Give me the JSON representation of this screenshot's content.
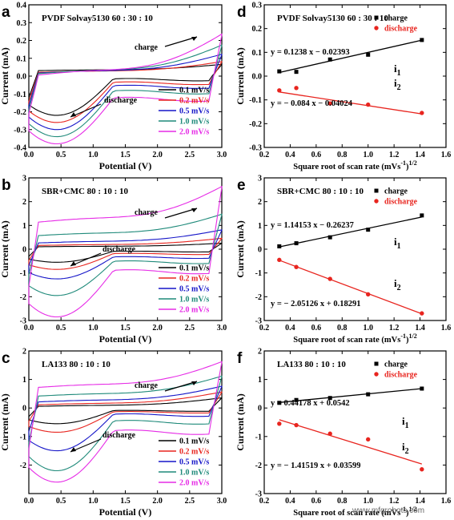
{
  "watermark": "www.mfgrobots.com",
  "colors": {
    "s1": "#000000",
    "s2": "#e8251f",
    "s3": "#1515c8",
    "s4": "#1f8a7a",
    "s5": "#e62be6"
  },
  "cv_legend": [
    "0.1 mV/s",
    "0.2 mV/s",
    "0.5 mV/s",
    "1.0 mV/s",
    "2.0 mV/s"
  ],
  "fit_legend": [
    "charge",
    "discharge"
  ],
  "chart_data": [
    {
      "panel": "a",
      "type": "line",
      "title": "PVDF Solvay5130  60 : 30 : 10",
      "xlabel": "Potential (V)",
      "ylabel": "Current (mA)",
      "xlim": [
        0,
        3
      ],
      "ylim": [
        -0.4,
        0.4
      ],
      "xticks": [
        "0.0",
        "0.5",
        "1.0",
        "1.5",
        "2.0",
        "2.5",
        "3.0"
      ],
      "yticks": [
        "-0.4",
        "-0.3",
        "-0.2",
        "-0.1",
        "0.0",
        "0.1",
        "0.2",
        "0.3",
        "0.4"
      ],
      "annotations": [
        "charge",
        "discharge"
      ],
      "charge_peak": [
        0.065,
        0.08,
        0.12,
        0.17,
        0.23
      ],
      "discharge_peak": [
        -0.22,
        -0.26,
        -0.3,
        -0.34,
        -0.38
      ],
      "baseline_ox": [
        0.03,
        0.02,
        0.015,
        0.01,
        0.0
      ],
      "baseline_red": [
        -0.02,
        -0.04,
        -0.06,
        -0.09,
        -0.13
      ]
    },
    {
      "panel": "b",
      "type": "line",
      "title": "SBR+CMC  80 : 10 : 10",
      "xlabel": "Potential (V)",
      "ylabel": "Current (mA)",
      "xlim": [
        0,
        3
      ],
      "ylim": [
        -3,
        3
      ],
      "xticks": [
        "0.0",
        "0.5",
        "1.0",
        "1.5",
        "2.0",
        "2.5",
        "3.0"
      ],
      "yticks": [
        "-3",
        "-2",
        "-1",
        "0",
        "1",
        "2",
        "3"
      ],
      "annotations": [
        "charge",
        "discharge"
      ],
      "charge_peak": [
        0.25,
        0.45,
        0.8,
        1.45,
        2.6
      ],
      "discharge_peak": [
        -0.55,
        -0.85,
        -1.25,
        -1.95,
        -2.85
      ],
      "baseline_ox": [
        0.1,
        0.15,
        0.25,
        0.55,
        1.1
      ],
      "baseline_red": [
        -0.1,
        -0.2,
        -0.35,
        -0.55,
        -0.95
      ]
    },
    {
      "panel": "c",
      "type": "line",
      "title": "LA133  80 : 10 : 10",
      "xlabel": "Potential (V)",
      "ylabel": "Current (mA)",
      "xlim": [
        0,
        3
      ],
      "ylim": [
        -3,
        2
      ],
      "xticks": [
        "0.0",
        "0.5",
        "1.0",
        "1.5",
        "2.0",
        "2.5",
        "3.0"
      ],
      "yticks": [
        "-2",
        "-1",
        "0",
        "1",
        "2"
      ],
      "annotations": [
        "charge",
        "discharge"
      ],
      "charge_peak": [
        0.35,
        0.55,
        0.75,
        1.1,
        1.6
      ],
      "discharge_peak": [
        -0.55,
        -0.85,
        -1.5,
        -2.2,
        -2.6
      ],
      "baseline_ox": [
        0.05,
        0.1,
        0.2,
        0.4,
        0.7
      ],
      "baseline_red": [
        -0.1,
        -0.15,
        -0.25,
        -0.5,
        -0.85
      ]
    },
    {
      "panel": "d",
      "type": "scatter",
      "title": "PVDF Solvay5130  60 : 30 : 10",
      "xlabel": "Square root of scan rate (mVs",
      "xlabel_sup": "-1",
      "xlabel_tail": ")",
      "xlabel_sup2": "1/2",
      "ylabel": "Current (mA)",
      "xlim": [
        0.2,
        1.6
      ],
      "ylim": [
        -0.3,
        0.3
      ],
      "xticks": [
        "0.2",
        "0.4",
        "0.6",
        "0.8",
        "1.0",
        "1.2",
        "1.4",
        "1.6"
      ],
      "yticks": [
        "-0.3",
        "-0.2",
        "-0.1",
        "0.0",
        "0.1",
        "0.2",
        "0.3"
      ],
      "x": [
        0.316,
        0.447,
        0.707,
        1.0,
        1.414
      ],
      "series": [
        {
          "name": "charge",
          "values": [
            0.02,
            0.018,
            0.07,
            0.09,
            0.152
          ],
          "fit": [
            0.1238,
            -0.02393
          ],
          "eq": "y = 0.1238 x − 0.02393",
          "label": "i",
          "sub": "1"
        },
        {
          "name": "discharge",
          "values": [
            -0.06,
            -0.05,
            -0.115,
            -0.12,
            -0.155
          ],
          "fit": [
            -0.084,
            -0.04024
          ],
          "eq": "y = − 0.084 x − 0.04024",
          "label": "i",
          "sub": "2"
        }
      ]
    },
    {
      "panel": "e",
      "type": "scatter",
      "title": "SBR+CMC  80 : 10 : 10",
      "xlabel": "Square root of scan rate (mVs",
      "xlabel_sup": "-1",
      "xlabel_tail": ")",
      "xlabel_sup2": "1/2",
      "ylabel": "Current (mA)",
      "xlim": [
        0.2,
        1.6
      ],
      "ylim": [
        -3,
        3
      ],
      "xticks": [
        "0.2",
        "0.4",
        "0.6",
        "0.8",
        "1.0",
        "1.2",
        "1.4",
        "1.6"
      ],
      "yticks": [
        "-3",
        "-2",
        "-1",
        "0",
        "1",
        "2",
        "3"
      ],
      "x": [
        0.316,
        0.447,
        0.707,
        1.0,
        1.414
      ],
      "series": [
        {
          "name": "charge",
          "values": [
            0.12,
            0.25,
            0.5,
            0.82,
            1.42
          ],
          "fit": [
            1.14153,
            -0.26237
          ],
          "eq": "y = 1.14153 x − 0.26237",
          "label": "i",
          "sub": "1"
        },
        {
          "name": "discharge",
          "values": [
            -0.45,
            -0.75,
            -1.25,
            -1.9,
            -2.7
          ],
          "fit": [
            -2.05126,
            0.18291
          ],
          "eq": "y = − 2.05126 x + 0.18291",
          "label": "i",
          "sub": "2"
        }
      ]
    },
    {
      "panel": "f",
      "type": "scatter",
      "title": "LA133  80 : 10 : 10",
      "xlabel": "Square root of scan rate (mVs",
      "xlabel_sup": "-1",
      "xlabel_tail": ")",
      "xlabel_sup2": "1/2",
      "ylabel": "Current (mA)",
      "xlim": [
        0.2,
        1.6
      ],
      "ylim": [
        -3,
        2
      ],
      "xticks": [
        "0.2",
        "0.4",
        "0.6",
        "0.8",
        "1.0",
        "1.2",
        "1.4",
        "1.6"
      ],
      "yticks": [
        "-3",
        "-2",
        "-1",
        "0",
        "1",
        "2"
      ],
      "x": [
        0.316,
        0.447,
        0.707,
        1.0,
        1.414
      ],
      "series": [
        {
          "name": "charge",
          "values": [
            0.18,
            0.28,
            0.35,
            0.48,
            0.68
          ],
          "fit": [
            0.44178,
            0.0542
          ],
          "eq": "y = 0.44178 x + 0.0542",
          "label": "i",
          "sub": "1"
        },
        {
          "name": "discharge",
          "values": [
            -0.55,
            -0.6,
            -0.9,
            -1.1,
            -2.15
          ],
          "fit": [
            -1.41519,
            0.03599
          ],
          "eq": "y = − 1.41519 x + 0.03599",
          "label": "i",
          "sub": "2"
        }
      ]
    }
  ]
}
